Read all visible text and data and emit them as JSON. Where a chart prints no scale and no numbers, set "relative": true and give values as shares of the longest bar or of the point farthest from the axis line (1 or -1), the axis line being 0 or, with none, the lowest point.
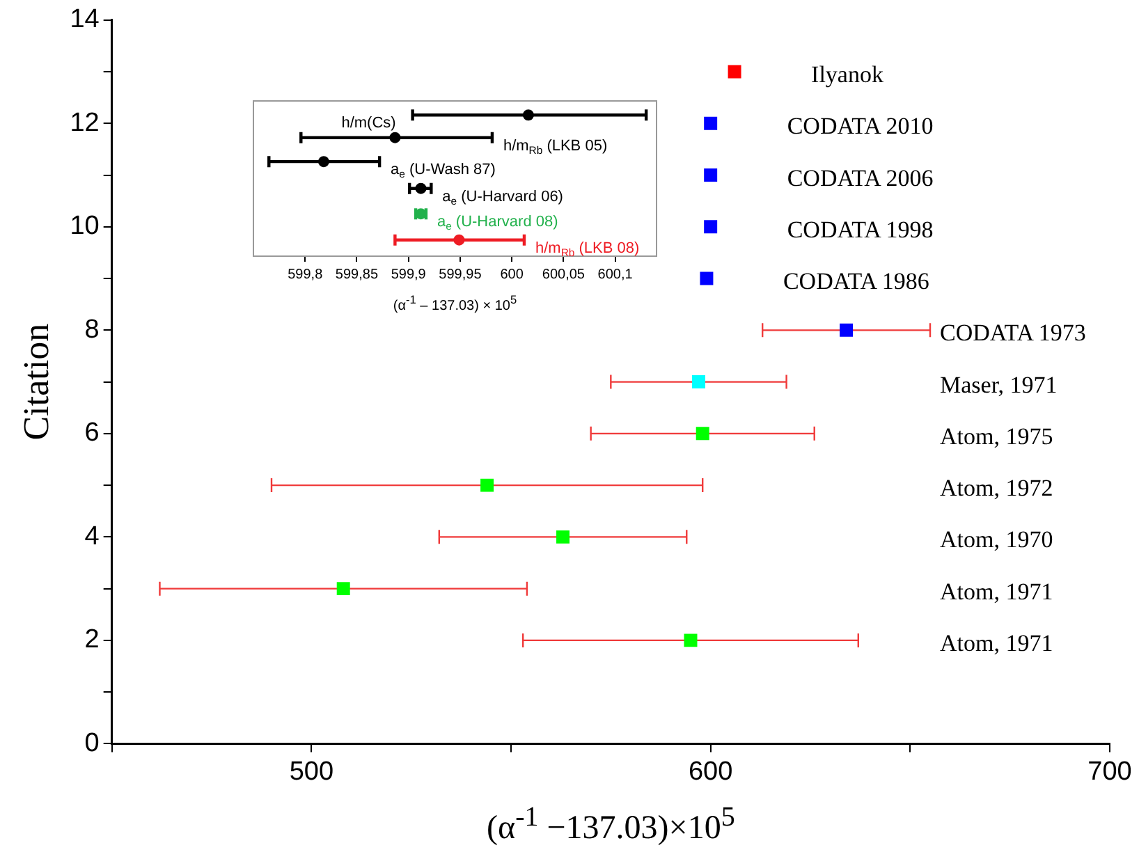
{
  "chart_data": [
    {
      "type": "scatter",
      "xlabel": "(α$^{-1}$ −137.03)×10$^{5}$",
      "ylabel": "Citation",
      "marker": "square",
      "grid": false,
      "legend": false,
      "xlim": [
        450,
        700
      ],
      "xticks": [
        {
          "value": 450,
          "label": null
        },
        500,
        {
          "value": 550,
          "label": null
        },
        600,
        {
          "value": 650,
          "label": null
        },
        700
      ],
      "ylim": [
        0,
        14
      ],
      "yticks": [
        0,
        {
          "value": 1,
          "label": null
        },
        2,
        {
          "value": 3,
          "label": null
        },
        4,
        {
          "value": 5,
          "label": null
        },
        6,
        {
          "value": 7,
          "label": null
        },
        8,
        {
          "value": 9,
          "label": null
        },
        10,
        {
          "value": 11,
          "label": null
        },
        12,
        {
          "value": 13,
          "label": null
        },
        14
      ],
      "x": [
        606,
        600,
        600,
        600,
        599,
        634,
        597,
        598,
        544,
        563,
        508,
        595
      ],
      "values": [
        13,
        12,
        11,
        10,
        9,
        8,
        7,
        6,
        5,
        4,
        3,
        2
      ],
      "colors": [
        "#ff0000",
        "#0000ff",
        "#0000ff",
        "#0000ff",
        "#0000ff",
        "#0000ff",
        "#00ffff",
        "#00ff00",
        "#00ff00",
        "#00ff00",
        "#00ff00",
        "#00ff00"
      ],
      "xerrors": [
        null,
        null,
        null,
        null,
        null,
        [
          613,
          655
        ],
        [
          575,
          619
        ],
        [
          570,
          626
        ],
        [
          490,
          598
        ],
        [
          532,
          594
        ],
        [
          462,
          554
        ],
        [
          553,
          637
        ]
      ],
      "annotations": [
        "Ilyanok",
        "CODATA 2010",
        "CODATA 2006",
        "CODATA 1998",
        "CODATA 1986",
        "CODATA 1973",
        "Maser, 1971",
        "Atom, 1975",
        "Atom, 1972",
        "Atom, 1970",
        "Atom, 1971",
        "Atom, 1971"
      ]
    },
    {
      "type": "scatter",
      "relative": true,
      "xlabel": "(α$^{-1}$ – 137.03) × 10$^{5}$",
      "marker": "circle",
      "grid": false,
      "legend": false,
      "tick_labels": "x",
      "xlim": [
        599.75,
        600.14
      ],
      "xticks": [
        {
          "value": 599.8,
          "label": "599,8"
        },
        {
          "value": 599.85,
          "label": "599,85"
        },
        {
          "value": 599.9,
          "label": "599,9"
        },
        {
          "value": 599.95,
          "label": "599,95"
        },
        {
          "value": 600,
          "label": "600"
        },
        {
          "value": 600.05,
          "label": "600,05"
        },
        {
          "value": 600.1,
          "label": "600,1"
        }
      ],
      "annotations": [
        "h/m(Cs)",
        "h/m$_{Rb}$ (LKB 05)",
        "a$_{e}$ (U-Wash 87)",
        "a$_{e}$ (U-Harvard 06)",
        "a$_{e}$ (U-Harvard 08)",
        "h/m$_{Rb}$ (LKB 08)"
      ],
      "x": [
        600.016,
        599.887,
        599.818,
        599.912,
        599.912,
        599.949
      ],
      "values": [
        1,
        0.84,
        0.67,
        0.48,
        0.3,
        0.115
      ],
      "colors": [
        "#000000",
        "#000000",
        "#000000",
        "#000000",
        "#22b14c",
        "#ee1c24"
      ],
      "xerrors": [
        [
          599.904,
          600.13
        ],
        [
          599.796,
          599.981
        ],
        [
          599.765,
          599.872
        ],
        [
          599.901,
          599.922
        ],
        [
          599.907,
          599.917
        ],
        [
          599.887,
          600.012
        ]
      ]
    }
  ]
}
